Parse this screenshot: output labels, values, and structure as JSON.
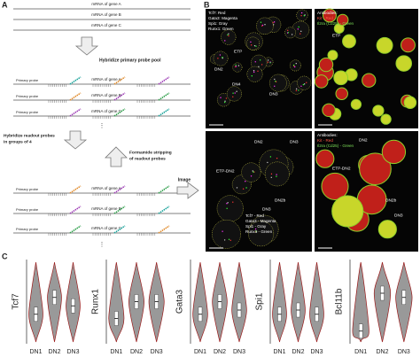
{
  "panel_labels": [
    "A",
    "B",
    "C"
  ],
  "panel_a": {
    "stage1": [
      "mRNA of gene A",
      "mRNA of gene B",
      "mRNA of gene C"
    ],
    "step1": "Hybridize primary probe pool",
    "stage2": {
      "probe": "Primary probe",
      "genes": [
        "mRNA of gene A",
        "mRNA of gene B",
        "mRNA of gene C"
      ]
    },
    "step2": [
      "Hybridize readout probes",
      "in groups of 4"
    ],
    "step3": [
      "Formamide stripping",
      "of readout probes"
    ],
    "stage3": {
      "probe": "Primary probe",
      "genes": [
        "mRNA of gene A",
        "mRNA of gene B",
        "mRNA of gene C"
      ]
    },
    "step4": "Image",
    "continuation": "⋮"
  },
  "panel_b": {
    "images": [
      {
        "lines": [
          "Tcf7: Red",
          "Gata3: Magenta",
          "Spi1: Gray",
          "Runx1: Green"
        ],
        "cells": [
          "DN2",
          "DN4",
          "DN3",
          "ETP"
        ]
      },
      {
        "lines": [
          "Antibodies:",
          "Kit - Red",
          "Il2ra (Cd25) - Green"
        ],
        "cells": [
          "ETP"
        ]
      },
      {
        "lines": [
          "Tcf7 - Red",
          "Gata3 - Magenta",
          "Spi1 - Gray",
          "Runx1 - Green"
        ],
        "cells": [
          "DN2",
          "DN3",
          "ETP-DN2",
          "DN2b",
          "DN3"
        ]
      },
      {
        "lines": [
          "Antibodies:",
          "Kit - Red",
          "Il2ra (Cd25) - Green"
        ],
        "cells": [
          "DN2",
          "ETP-DN2",
          "DN2b",
          "DN3"
        ]
      }
    ]
  },
  "panel_c": {
    "plots": [
      {
        "ylabel": "Tcf7",
        "categories": [
          "DN1",
          "DN2",
          "DN3"
        ]
      },
      {
        "ylabel": "Runx1",
        "categories": [
          "DN1",
          "DN2",
          "DN3"
        ]
      },
      {
        "ylabel": "Gata3",
        "categories": [
          "DN1",
          "DN2",
          "DN3"
        ]
      },
      {
        "ylabel": "Spi1",
        "categories": [
          "DN1",
          "DN2",
          "DN3"
        ]
      },
      {
        "ylabel": "Bcl11b",
        "categories": [
          "DN1",
          "DN2",
          "DN3"
        ]
      }
    ]
  }
}
